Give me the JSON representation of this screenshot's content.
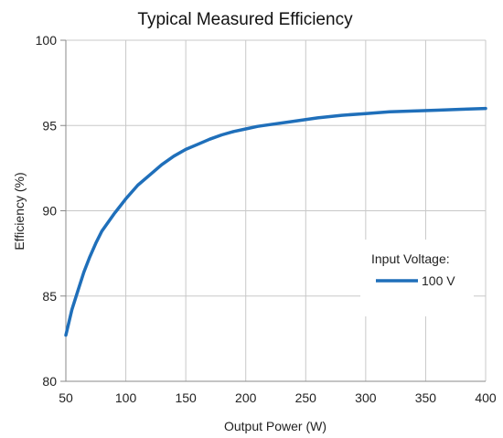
{
  "chart_data": {
    "type": "line",
    "title": "Typical Measured Efficiency",
    "xlabel": "Output Power (W)",
    "ylabel": "Efficiency (%)",
    "xlim": [
      50,
      400
    ],
    "ylim": [
      80,
      100
    ],
    "x_ticks": [
      50,
      100,
      150,
      200,
      250,
      300,
      350,
      400
    ],
    "y_ticks": [
      80,
      85,
      90,
      95,
      100
    ],
    "grid": true,
    "legend": {
      "title": "Input Voltage:",
      "placement": "right-middle"
    },
    "colors": {
      "series": "#1f6fba",
      "grid": "#c8c8c8",
      "axis": "#888888"
    },
    "series": [
      {
        "name": "100 V",
        "x": [
          50,
          55,
          60,
          65,
          70,
          75,
          80,
          90,
          100,
          110,
          120,
          130,
          140,
          150,
          160,
          170,
          180,
          190,
          200,
          210,
          220,
          240,
          260,
          280,
          300,
          320,
          340,
          360,
          380,
          400
        ],
        "y": [
          82.7,
          84.2,
          85.3,
          86.4,
          87.3,
          88.1,
          88.8,
          89.8,
          90.7,
          91.5,
          92.1,
          92.7,
          93.2,
          93.6,
          93.9,
          94.2,
          94.45,
          94.65,
          94.8,
          94.95,
          95.05,
          95.25,
          95.45,
          95.6,
          95.7,
          95.8,
          95.85,
          95.9,
          95.95,
          96.0
        ]
      }
    ]
  }
}
